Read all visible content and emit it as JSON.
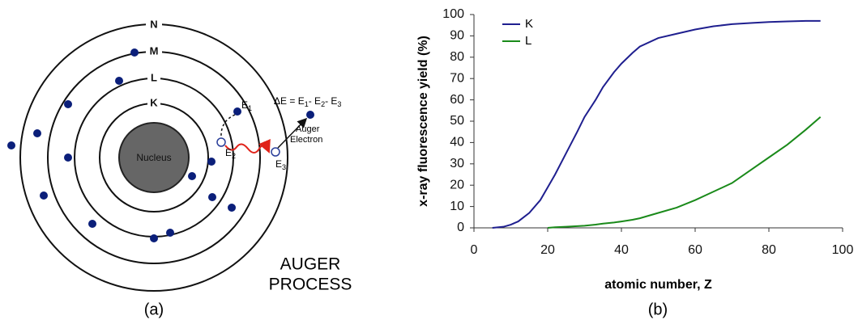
{
  "diagram": {
    "nucleus": "Nucleus",
    "shells": [
      "K",
      "L",
      "M",
      "N"
    ],
    "e1": {
      "base": "E",
      "sub": "1"
    },
    "e2": {
      "base": "E",
      "sub": "2"
    },
    "e3": {
      "base": "E",
      "sub": "3"
    },
    "equation": [
      "ΔE = E",
      "1",
      "- E",
      "2",
      "- E",
      "3"
    ],
    "auger_label": [
      "Auger",
      "Electron"
    ],
    "process_label": [
      "AUGER",
      "PROCESS"
    ],
    "panel_label": "(a)"
  },
  "chart_panel_label": "(b)",
  "chart_data": {
    "type": "line",
    "x_label": "atomic number, Z",
    "y_label": "x-ray fluorescence yield (%)",
    "x": [
      5,
      8,
      10,
      12,
      15,
      18,
      20,
      22,
      25,
      28,
      30,
      33,
      35,
      38,
      40,
      43,
      45,
      50,
      55,
      60,
      65,
      70,
      75,
      80,
      85,
      90,
      94
    ],
    "series": [
      {
        "name": "K",
        "color": "#1f1f8f",
        "values": [
          0,
          0.5,
          1.5,
          3,
          7,
          13,
          19,
          25,
          35,
          45,
          52,
          60,
          66,
          73,
          77,
          82,
          85,
          89,
          91,
          93,
          94.5,
          95.5,
          96,
          96.5,
          96.8,
          97,
          97
        ]
      },
      {
        "name": "L",
        "color": "#1a8a1a",
        "values": [
          null,
          null,
          null,
          null,
          null,
          null,
          0,
          0.3,
          0.5,
          0.8,
          1,
          1.5,
          2,
          2.5,
          3,
          3.8,
          4.5,
          7,
          9.5,
          13,
          17,
          21,
          27,
          33,
          39,
          46,
          52
        ]
      }
    ],
    "xlim": [
      0,
      100
    ],
    "xticks": [
      0,
      20,
      40,
      60,
      80,
      100
    ],
    "ylim": [
      0,
      100
    ],
    "yticks": [
      0,
      10,
      20,
      30,
      40,
      50,
      60,
      70,
      80,
      90,
      100
    ],
    "legend": "upper left"
  }
}
